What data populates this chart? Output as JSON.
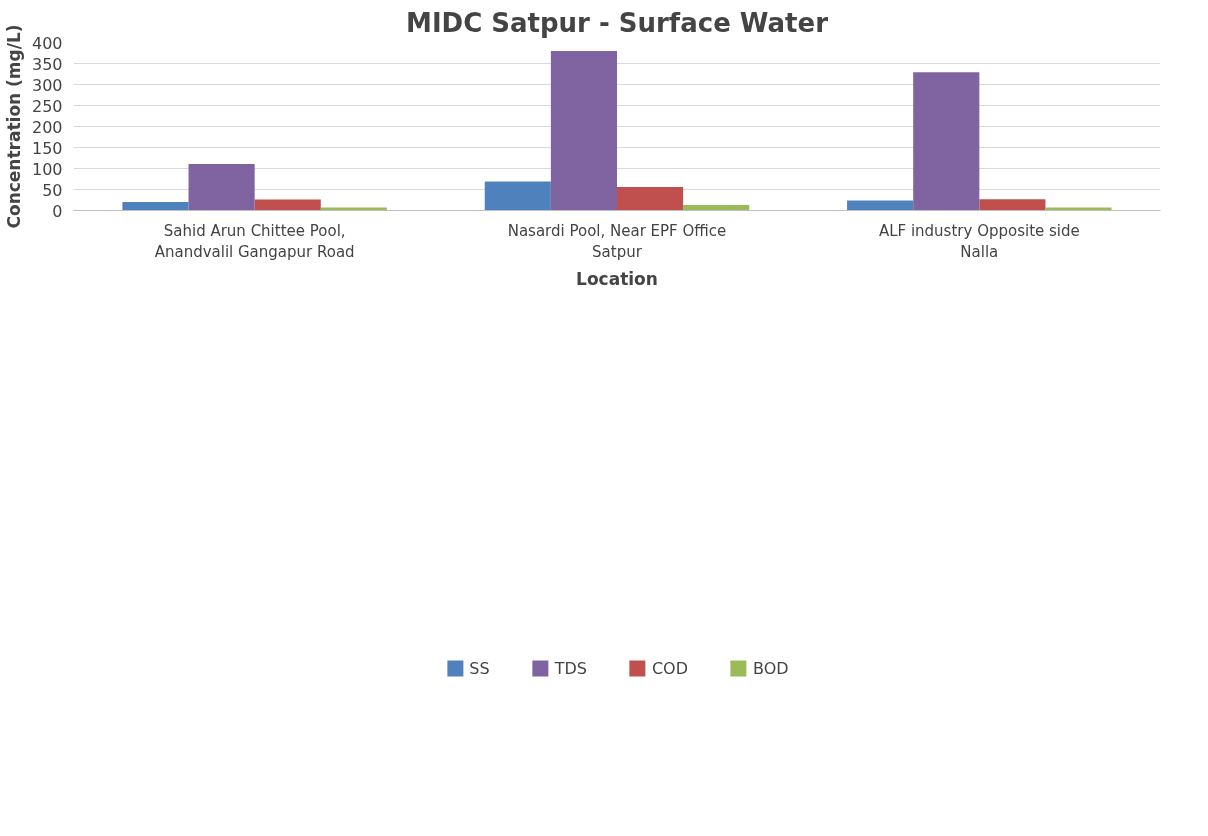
{
  "chart_data": {
    "type": "bar",
    "title": "MIDC Satpur - Surface Water",
    "xlabel": "Location",
    "ylabel": "Concentration (mg/L)",
    "categories": [
      "Sahid Arun Chittee Pool,\nAnandvalil Gangapur Road",
      "Nasardi Pool, Near EPF Office\nSatpur",
      "ALF industry Opposite side\nNalla"
    ],
    "series": [
      {
        "name": "SS",
        "color": "#4f81bd",
        "values": [
          20,
          69,
          24
        ]
      },
      {
        "name": "TDS",
        "color": "#8064a2",
        "values": [
          111,
          380,
          329
        ]
      },
      {
        "name": "COD",
        "color": "#c0504d",
        "values": [
          26,
          56,
          27
        ]
      },
      {
        "name": "BOD",
        "color": "#9bbb59",
        "values": [
          7,
          13,
          7
        ]
      }
    ],
    "ylim": [
      0,
      400
    ],
    "yticks": [
      0,
      50,
      100,
      150,
      200,
      250,
      300,
      350,
      400
    ],
    "grid": "y",
    "legend": "bottom"
  }
}
